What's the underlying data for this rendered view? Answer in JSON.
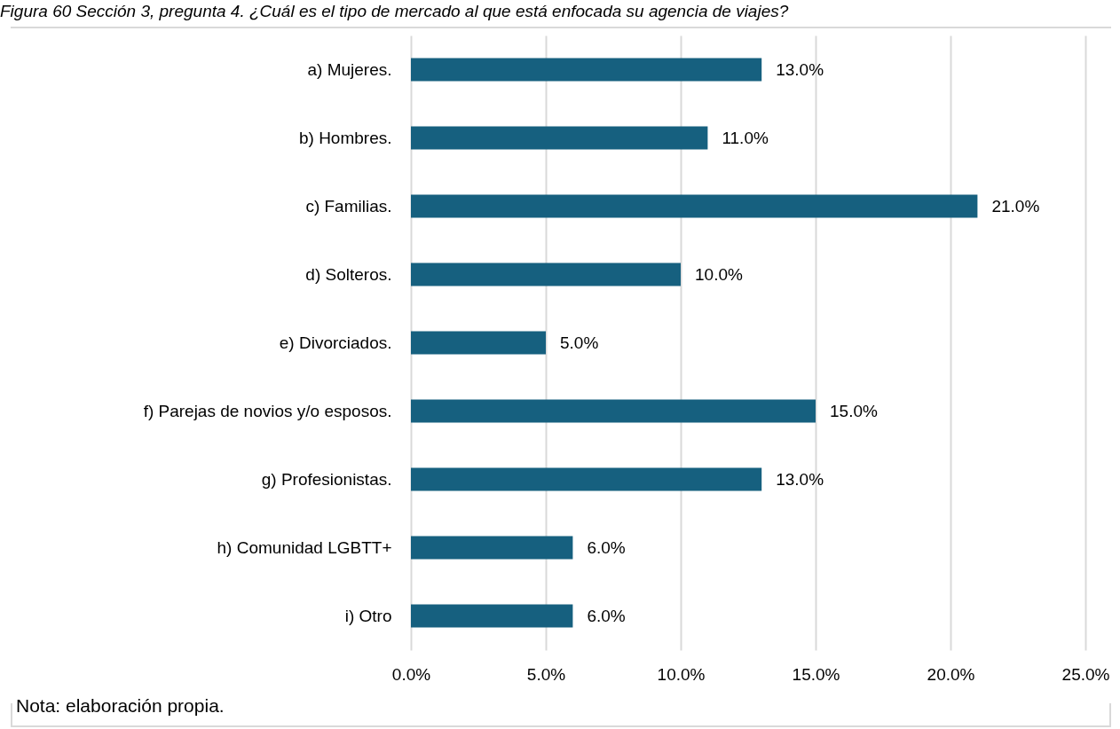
{
  "chart_data": {
    "type": "bar",
    "orientation": "horizontal",
    "title": "Figura 60 Sección 3, pregunta 4. ¿Cuál es el tipo de mercado al que está enfocada su agencia de viajes?",
    "categories": [
      "a) Mujeres.",
      "b) Hombres.",
      "c) Familias.",
      "d) Solteros.",
      "e) Divorciados.",
      "f) Parejas de novios y/o esposos.",
      "g) Profesionistas.",
      "h) Comunidad LGBTT+",
      "i) Otro"
    ],
    "values": [
      13,
      11,
      21,
      10,
      5,
      15,
      13,
      6,
      6
    ],
    "value_labels": [
      "13.0%",
      "11.0%",
      "21.0%",
      "10.0%",
      "5.0%",
      "15.0%",
      "13.0%",
      "6.0%",
      "6.0%"
    ],
    "color": "#16607f",
    "xlim": [
      0,
      25
    ],
    "xticks": [
      {
        "value": 0,
        "label": "0.0%"
      },
      {
        "value": 5,
        "label": "5.0%"
      },
      {
        "value": 10,
        "label": "10.0%"
      },
      {
        "value": 15,
        "label": "15.0%"
      },
      {
        "value": 20,
        "label": "20.0%"
      },
      {
        "value": 25,
        "label": "25.0%"
      }
    ],
    "grid": "x",
    "annotations": [
      "Nota: elaboración propia."
    ]
  }
}
